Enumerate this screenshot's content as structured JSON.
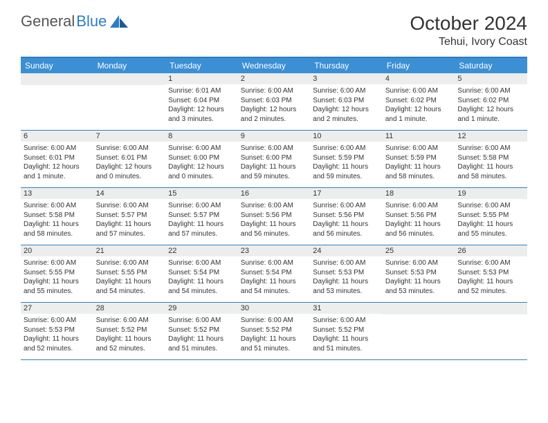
{
  "logo": {
    "text1": "General",
    "text2": "Blue"
  },
  "title": "October 2024",
  "location": "Tehui, Ivory Coast",
  "weekday_header_bg": "#3b8fd4",
  "border_color": "#2d7dc3",
  "daynum_bg": "#eceeee",
  "text_color": "#333333",
  "weekdays": [
    "Sunday",
    "Monday",
    "Tuesday",
    "Wednesday",
    "Thursday",
    "Friday",
    "Saturday"
  ],
  "weeks": [
    [
      null,
      null,
      {
        "n": "1",
        "sr": "Sunrise: 6:01 AM",
        "ss": "Sunset: 6:04 PM",
        "dl": "Daylight: 12 hours and 3 minutes."
      },
      {
        "n": "2",
        "sr": "Sunrise: 6:00 AM",
        "ss": "Sunset: 6:03 PM",
        "dl": "Daylight: 12 hours and 2 minutes."
      },
      {
        "n": "3",
        "sr": "Sunrise: 6:00 AM",
        "ss": "Sunset: 6:03 PM",
        "dl": "Daylight: 12 hours and 2 minutes."
      },
      {
        "n": "4",
        "sr": "Sunrise: 6:00 AM",
        "ss": "Sunset: 6:02 PM",
        "dl": "Daylight: 12 hours and 1 minute."
      },
      {
        "n": "5",
        "sr": "Sunrise: 6:00 AM",
        "ss": "Sunset: 6:02 PM",
        "dl": "Daylight: 12 hours and 1 minute."
      }
    ],
    [
      {
        "n": "6",
        "sr": "Sunrise: 6:00 AM",
        "ss": "Sunset: 6:01 PM",
        "dl": "Daylight: 12 hours and 1 minute."
      },
      {
        "n": "7",
        "sr": "Sunrise: 6:00 AM",
        "ss": "Sunset: 6:01 PM",
        "dl": "Daylight: 12 hours and 0 minutes."
      },
      {
        "n": "8",
        "sr": "Sunrise: 6:00 AM",
        "ss": "Sunset: 6:00 PM",
        "dl": "Daylight: 12 hours and 0 minutes."
      },
      {
        "n": "9",
        "sr": "Sunrise: 6:00 AM",
        "ss": "Sunset: 6:00 PM",
        "dl": "Daylight: 11 hours and 59 minutes."
      },
      {
        "n": "10",
        "sr": "Sunrise: 6:00 AM",
        "ss": "Sunset: 5:59 PM",
        "dl": "Daylight: 11 hours and 59 minutes."
      },
      {
        "n": "11",
        "sr": "Sunrise: 6:00 AM",
        "ss": "Sunset: 5:59 PM",
        "dl": "Daylight: 11 hours and 58 minutes."
      },
      {
        "n": "12",
        "sr": "Sunrise: 6:00 AM",
        "ss": "Sunset: 5:58 PM",
        "dl": "Daylight: 11 hours and 58 minutes."
      }
    ],
    [
      {
        "n": "13",
        "sr": "Sunrise: 6:00 AM",
        "ss": "Sunset: 5:58 PM",
        "dl": "Daylight: 11 hours and 58 minutes."
      },
      {
        "n": "14",
        "sr": "Sunrise: 6:00 AM",
        "ss": "Sunset: 5:57 PM",
        "dl": "Daylight: 11 hours and 57 minutes."
      },
      {
        "n": "15",
        "sr": "Sunrise: 6:00 AM",
        "ss": "Sunset: 5:57 PM",
        "dl": "Daylight: 11 hours and 57 minutes."
      },
      {
        "n": "16",
        "sr": "Sunrise: 6:00 AM",
        "ss": "Sunset: 5:56 PM",
        "dl": "Daylight: 11 hours and 56 minutes."
      },
      {
        "n": "17",
        "sr": "Sunrise: 6:00 AM",
        "ss": "Sunset: 5:56 PM",
        "dl": "Daylight: 11 hours and 56 minutes."
      },
      {
        "n": "18",
        "sr": "Sunrise: 6:00 AM",
        "ss": "Sunset: 5:56 PM",
        "dl": "Daylight: 11 hours and 56 minutes."
      },
      {
        "n": "19",
        "sr": "Sunrise: 6:00 AM",
        "ss": "Sunset: 5:55 PM",
        "dl": "Daylight: 11 hours and 55 minutes."
      }
    ],
    [
      {
        "n": "20",
        "sr": "Sunrise: 6:00 AM",
        "ss": "Sunset: 5:55 PM",
        "dl": "Daylight: 11 hours and 55 minutes."
      },
      {
        "n": "21",
        "sr": "Sunrise: 6:00 AM",
        "ss": "Sunset: 5:55 PM",
        "dl": "Daylight: 11 hours and 54 minutes."
      },
      {
        "n": "22",
        "sr": "Sunrise: 6:00 AM",
        "ss": "Sunset: 5:54 PM",
        "dl": "Daylight: 11 hours and 54 minutes."
      },
      {
        "n": "23",
        "sr": "Sunrise: 6:00 AM",
        "ss": "Sunset: 5:54 PM",
        "dl": "Daylight: 11 hours and 54 minutes."
      },
      {
        "n": "24",
        "sr": "Sunrise: 6:00 AM",
        "ss": "Sunset: 5:53 PM",
        "dl": "Daylight: 11 hours and 53 minutes."
      },
      {
        "n": "25",
        "sr": "Sunrise: 6:00 AM",
        "ss": "Sunset: 5:53 PM",
        "dl": "Daylight: 11 hours and 53 minutes."
      },
      {
        "n": "26",
        "sr": "Sunrise: 6:00 AM",
        "ss": "Sunset: 5:53 PM",
        "dl": "Daylight: 11 hours and 52 minutes."
      }
    ],
    [
      {
        "n": "27",
        "sr": "Sunrise: 6:00 AM",
        "ss": "Sunset: 5:53 PM",
        "dl": "Daylight: 11 hours and 52 minutes."
      },
      {
        "n": "28",
        "sr": "Sunrise: 6:00 AM",
        "ss": "Sunset: 5:52 PM",
        "dl": "Daylight: 11 hours and 52 minutes."
      },
      {
        "n": "29",
        "sr": "Sunrise: 6:00 AM",
        "ss": "Sunset: 5:52 PM",
        "dl": "Daylight: 11 hours and 51 minutes."
      },
      {
        "n": "30",
        "sr": "Sunrise: 6:00 AM",
        "ss": "Sunset: 5:52 PM",
        "dl": "Daylight: 11 hours and 51 minutes."
      },
      {
        "n": "31",
        "sr": "Sunrise: 6:00 AM",
        "ss": "Sunset: 5:52 PM",
        "dl": "Daylight: 11 hours and 51 minutes."
      },
      null,
      null
    ]
  ]
}
